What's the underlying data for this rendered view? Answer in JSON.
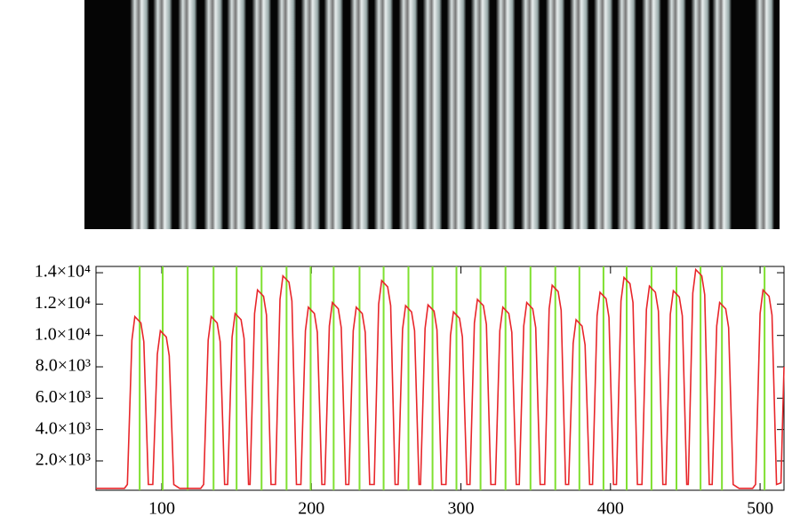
{
  "chart_data": {
    "type": "line",
    "xlim": [
      56,
      516
    ],
    "ylim": [
      130,
      14400
    ],
    "xticks": [
      100,
      200,
      300,
      400,
      500
    ],
    "yticks": [
      {
        "value": 2000,
        "label": "2.0×10³"
      },
      {
        "value": 4000,
        "label": "4.0×10³"
      },
      {
        "value": 6000,
        "label": "6.0×10³"
      },
      {
        "value": 8000,
        "label": "8.0×10³"
      },
      {
        "value": 10000,
        "label": "1.0×10⁴"
      },
      {
        "value": 12000,
        "label": "1.2×10⁴"
      },
      {
        "value": 14000,
        "label": "1.4×10⁴"
      }
    ],
    "fibers": {
      "color": "#7fe030",
      "x": [
        85.2,
        100.6,
        117.3,
        134.6,
        150.0,
        166.7,
        183.4,
        199.5,
        214.9,
        232.2,
        248.3,
        264.9,
        281.0,
        297.0,
        313.1,
        329.8,
        346.5,
        363.1,
        379.2,
        395.3,
        410.8,
        427.4,
        444.1,
        460.2,
        474.5,
        503.0
      ]
    },
    "series": [
      {
        "color": "#e8262a",
        "x": [
          56,
          75,
          77,
          80,
          82,
          86,
          88,
          91,
          94,
          97,
          99,
          103,
          105,
          108,
          112,
          126,
          128,
          131,
          133,
          137,
          139,
          142,
          144,
          147,
          149,
          153,
          155,
          158,
          159,
          162,
          164,
          168,
          170,
          173,
          176,
          179,
          181,
          185,
          187,
          190,
          193,
          196,
          198,
          202,
          204,
          207,
          209,
          212,
          214,
          218,
          220,
          223,
          225,
          228,
          230,
          234,
          236,
          239,
          242,
          245,
          247,
          251,
          253,
          256,
          258,
          261,
          263,
          267,
          269,
          272,
          273,
          276,
          278,
          282,
          284,
          287,
          290,
          293,
          295,
          299,
          301,
          304,
          306,
          309,
          311,
          315,
          317,
          320,
          323,
          326,
          328,
          332,
          334,
          337,
          339,
          342,
          344,
          348,
          350,
          353,
          356,
          359,
          361,
          365,
          367,
          370,
          372,
          375,
          377,
          381,
          383,
          386,
          388,
          391,
          393,
          397,
          399,
          402,
          404,
          407,
          409,
          413,
          415,
          418,
          421,
          424,
          426,
          430,
          432,
          435,
          437,
          440,
          442,
          446,
          448,
          451,
          452,
          455,
          457,
          461,
          463,
          466,
          468,
          471,
          473,
          477,
          479,
          482,
          486,
          495,
          497,
          500,
          502,
          506,
          508,
          511,
          514,
          516
        ],
        "values": [
          250,
          250,
          500,
          9700,
          11200,
          10800,
          9600,
          500,
          500,
          8800,
          10300,
          9900,
          8700,
          500,
          250,
          250,
          500,
          9700,
          11200,
          10800,
          9600,
          500,
          500,
          9900,
          11400,
          11000,
          9800,
          500,
          500,
          11400,
          12900,
          12500,
          11300,
          500,
          500,
          12300,
          13800,
          13400,
          12200,
          500,
          500,
          10300,
          11800,
          11400,
          10200,
          500,
          500,
          10600,
          12100,
          11700,
          10500,
          500,
          500,
          10300,
          11800,
          11400,
          10200,
          500,
          500,
          12000,
          13500,
          13100,
          11900,
          500,
          500,
          10400,
          11900,
          11500,
          10300,
          500,
          500,
          10450,
          11950,
          11550,
          10350,
          500,
          500,
          10000,
          11500,
          11100,
          9900,
          500,
          500,
          10800,
          12300,
          11900,
          10700,
          500,
          500,
          10300,
          11800,
          11400,
          10200,
          500,
          500,
          10600,
          12100,
          11700,
          10500,
          500,
          500,
          11700,
          13200,
          12800,
          11600,
          500,
          500,
          9500,
          11000,
          10600,
          9400,
          500,
          500,
          11250,
          12750,
          12350,
          11150,
          500,
          500,
          12200,
          13700,
          13300,
          12100,
          500,
          500,
          11650,
          13150,
          12750,
          11550,
          500,
          500,
          11350,
          12850,
          12450,
          11250,
          500,
          500,
          12700,
          14200,
          13800,
          12600,
          500,
          500,
          10600,
          12100,
          11700,
          10500,
          500,
          250,
          250,
          500,
          11400,
          12900,
          12500,
          11300,
          500,
          600,
          8000
        ]
      }
    ]
  }
}
